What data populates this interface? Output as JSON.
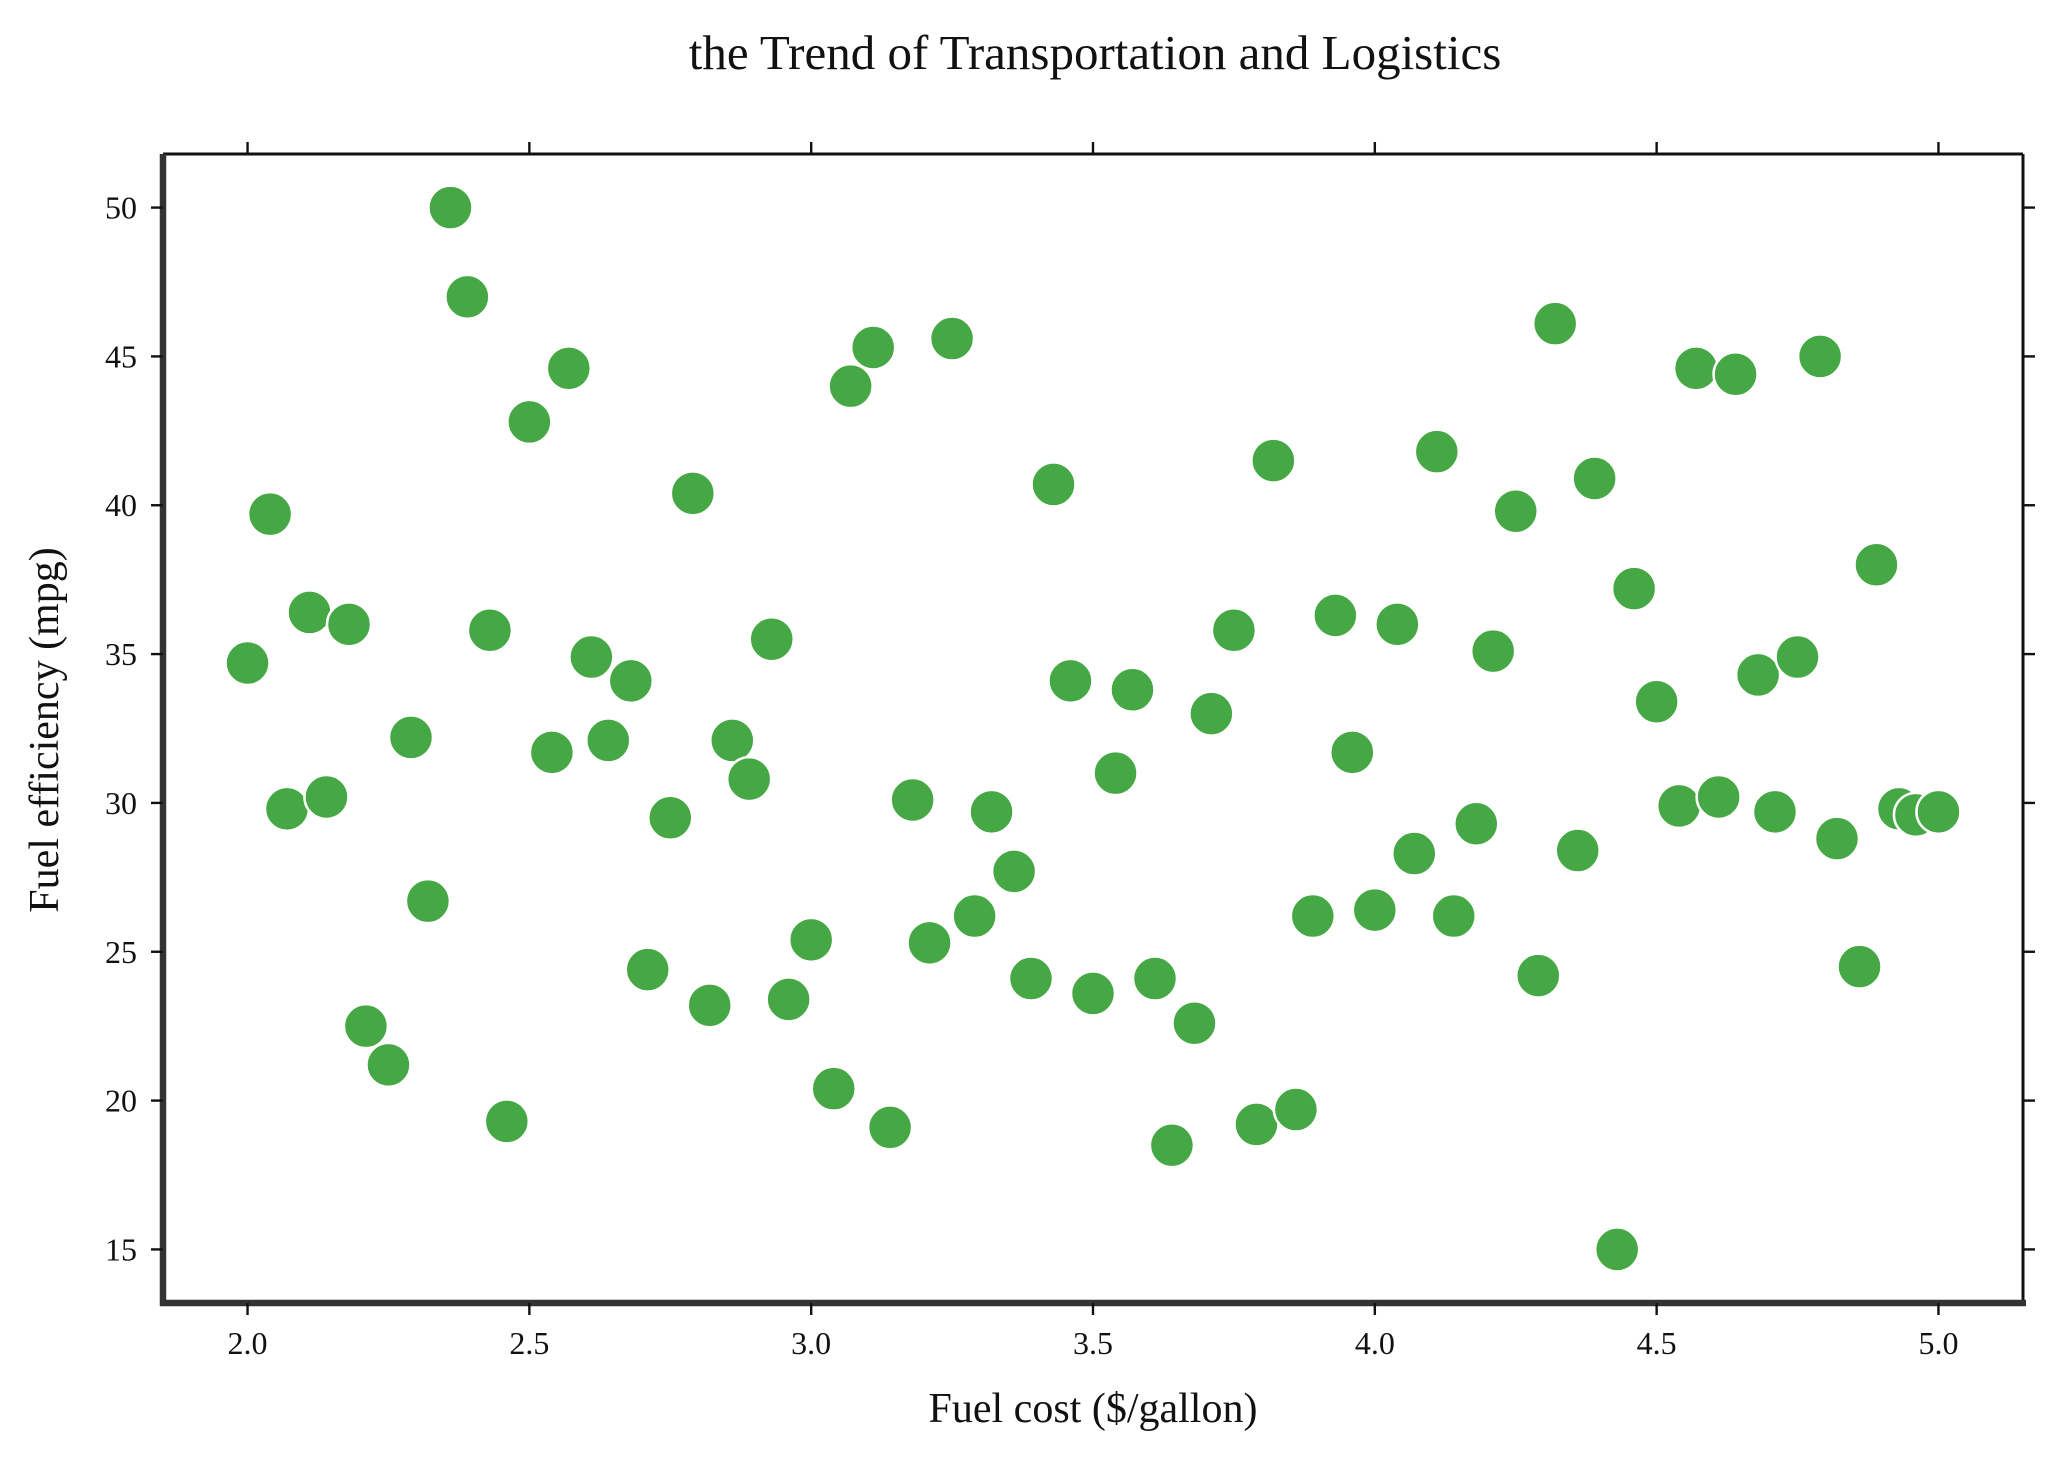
{
  "chart_data": {
    "type": "scatter",
    "title": "the Trend of Transportation and Logistics",
    "xlabel": "Fuel cost ($/gallon)",
    "ylabel": "Fuel efficiency (mpg)",
    "xlim": [
      1.85,
      5.15
    ],
    "ylim": [
      13.2,
      51.8
    ],
    "xticks": [
      "2.0",
      "2.5",
      "3.0",
      "3.5",
      "4.0",
      "4.5",
      "5.0"
    ],
    "yticks": [
      "15",
      "20",
      "25",
      "30",
      "35",
      "40",
      "45",
      "50"
    ],
    "grid": false,
    "colors": {
      "point": "#45a845",
      "point_edge": "#ffffff"
    },
    "series": [
      {
        "x": [
          2.0,
          2.04,
          2.07,
          2.11,
          2.14,
          2.18,
          2.21,
          2.25,
          2.29,
          2.32,
          2.36,
          2.39,
          2.43,
          2.46,
          2.5,
          2.54,
          2.57,
          2.61,
          2.64,
          2.68,
          2.71,
          2.75,
          2.79,
          2.82,
          2.86,
          2.89,
          2.93,
          2.96,
          3.0,
          3.04,
          3.07,
          3.11,
          3.14,
          3.18,
          3.21,
          3.25,
          3.29,
          3.32,
          3.36,
          3.39,
          3.43,
          3.46,
          3.5,
          3.54,
          3.57,
          3.61,
          3.64,
          3.68,
          3.71,
          3.75,
          3.79,
          3.82,
          3.86,
          3.89,
          3.93,
          3.96,
          4.0,
          4.04,
          4.07,
          4.11,
          4.14,
          4.18,
          4.21,
          4.25,
          4.29,
          4.32,
          4.36,
          4.39,
          4.43,
          4.46,
          4.5,
          4.54,
          4.57,
          4.61,
          4.64,
          4.68,
          4.71,
          4.75,
          4.79,
          4.82,
          4.86,
          4.89,
          4.93,
          4.96,
          5.0
        ],
        "y": [
          34.7,
          39.7,
          29.8,
          36.4,
          30.2,
          36.0,
          22.5,
          21.2,
          32.2,
          26.7,
          50.0,
          47.0,
          35.8,
          19.3,
          42.8,
          31.7,
          44.6,
          34.9,
          32.1,
          34.1,
          24.4,
          29.5,
          40.4,
          23.2,
          32.1,
          30.8,
          35.5,
          23.4,
          25.4,
          20.4,
          44.0,
          45.3,
          19.1,
          30.1,
          25.3,
          45.6,
          26.2,
          29.7,
          27.7,
          24.1,
          40.7,
          34.1,
          23.6,
          31.0,
          33.8,
          24.1,
          18.5,
          22.6,
          33.0,
          35.8,
          19.2,
          41.5,
          19.7,
          26.2,
          36.3,
          31.7,
          26.4,
          36.0,
          28.3,
          41.8,
          26.2,
          29.3,
          35.1,
          39.8,
          24.2,
          46.1,
          28.4,
          40.9,
          15.0,
          37.2,
          33.4,
          29.9,
          44.6,
          30.2,
          44.4,
          34.3,
          29.7,
          34.9,
          45.0,
          28.8,
          24.5,
          38.0,
          29.8,
          29.6,
          29.7
        ]
      }
    ]
  }
}
